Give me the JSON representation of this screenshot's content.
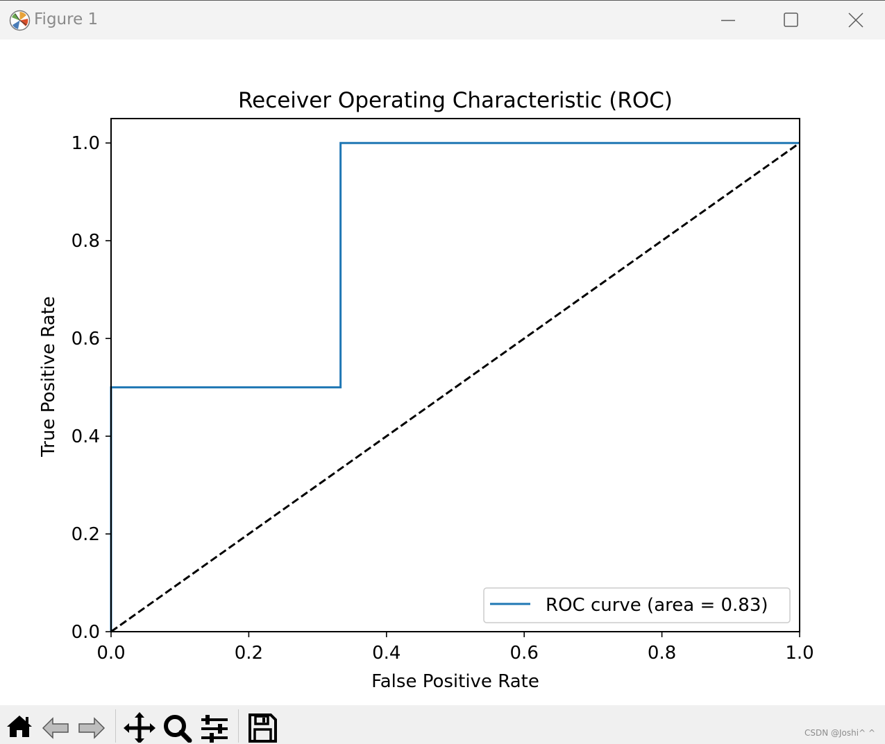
{
  "window": {
    "title": "Figure 1"
  },
  "chart_data": {
    "type": "line",
    "title": "Receiver Operating Characteristic (ROC)",
    "xlabel": "False Positive Rate",
    "ylabel": "True Positive Rate",
    "xlim": [
      0.0,
      1.0
    ],
    "ylim": [
      0.0,
      1.05
    ],
    "xticks": [
      "0.0",
      "0.2",
      "0.4",
      "0.6",
      "0.8",
      "1.0"
    ],
    "yticks": [
      "0.0",
      "0.2",
      "0.4",
      "0.6",
      "0.8",
      "1.0"
    ],
    "grid": false,
    "legend_position": "lower right",
    "series": [
      {
        "name": "ROC curve (area = 0.83)",
        "color": "#1f77b4",
        "style": "solid",
        "x": [
          0.0,
          0.0,
          0.0,
          0.3333,
          0.3333,
          1.0
        ],
        "y": [
          0.0,
          0.5,
          0.5,
          0.5,
          1.0,
          1.0
        ]
      },
      {
        "name": "",
        "color": "#000000",
        "style": "dashed",
        "x": [
          0.0,
          1.0
        ],
        "y": [
          0.0,
          1.0
        ]
      }
    ]
  },
  "toolbar": {
    "tools": [
      {
        "icon": "home-icon"
      },
      {
        "icon": "back-arrow-icon"
      },
      {
        "icon": "forward-arrow-icon"
      },
      {
        "icon": "pan-move-icon"
      },
      {
        "icon": "zoom-magnifier-icon"
      },
      {
        "icon": "configure-subplots-icon"
      },
      {
        "icon": "save-disk-icon"
      }
    ]
  },
  "watermark": "CSDN @Joshi^ ^"
}
